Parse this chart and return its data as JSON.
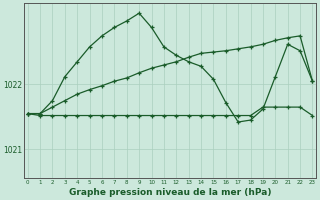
{
  "bg_color": "#cce8dc",
  "grid_color": "#aacfbe",
  "line_color": "#1a5c2a",
  "title": "Graphe pression niveau de la mer (hPa)",
  "title_fontsize": 6.5,
  "xlabel_ticks": [
    0,
    1,
    2,
    3,
    4,
    5,
    6,
    7,
    8,
    9,
    10,
    11,
    12,
    13,
    14,
    15,
    16,
    17,
    18,
    19,
    20,
    21,
    22,
    23
  ],
  "yticks": [
    1021,
    1022
  ],
  "ylim": [
    1020.55,
    1023.25
  ],
  "xlim": [
    -0.3,
    23.3
  ],
  "series_flat_x": [
    0,
    1,
    2,
    3,
    4,
    5,
    6,
    7,
    8,
    9,
    10,
    11,
    12,
    13,
    14,
    15,
    16,
    17,
    18,
    19,
    20,
    21,
    22,
    23
  ],
  "series_flat_y": [
    1021.55,
    1021.52,
    1021.52,
    1021.52,
    1021.52,
    1021.52,
    1021.52,
    1021.52,
    1021.52,
    1021.52,
    1021.52,
    1021.52,
    1021.52,
    1021.52,
    1021.52,
    1021.52,
    1021.52,
    1021.52,
    1021.52,
    1021.65,
    1021.65,
    1021.65,
    1021.65,
    1021.52
  ],
  "series_rise_x": [
    0,
    1,
    2,
    3,
    4,
    5,
    6,
    7,
    8,
    9,
    10,
    11,
    12,
    13,
    14,
    15,
    16,
    17,
    18,
    19,
    20,
    21,
    22,
    23
  ],
  "series_rise_y": [
    1021.55,
    1021.55,
    1021.65,
    1021.75,
    1021.85,
    1021.92,
    1021.98,
    1022.05,
    1022.1,
    1022.18,
    1022.25,
    1022.3,
    1022.35,
    1022.42,
    1022.48,
    1022.5,
    1022.52,
    1022.55,
    1022.58,
    1022.62,
    1022.68,
    1022.72,
    1022.75,
    1022.05
  ],
  "series_peak_x": [
    0,
    1,
    2,
    3,
    4,
    5,
    6,
    7,
    8,
    9,
    10,
    11,
    12,
    13,
    14,
    15,
    16,
    17,
    18,
    19,
    20,
    21,
    22,
    23
  ],
  "series_peak_y": [
    1021.55,
    1021.55,
    1021.75,
    1022.12,
    1022.35,
    1022.58,
    1022.75,
    1022.88,
    1022.98,
    1023.1,
    1022.88,
    1022.58,
    1022.45,
    1022.35,
    1022.28,
    1022.08,
    1021.72,
    1021.42,
    1021.45,
    1021.62,
    1022.12,
    1022.62,
    1022.52,
    1022.05
  ]
}
